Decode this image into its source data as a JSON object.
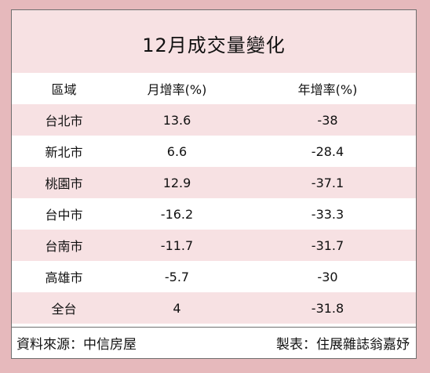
{
  "table": {
    "title": "12月成交量變化",
    "headers": [
      "區域",
      "月增率(%)",
      "年增率(%)"
    ],
    "rows": [
      [
        "台北市",
        "13.6",
        "-38"
      ],
      [
        "新北市",
        "6.6",
        "-28.4"
      ],
      [
        "桃園市",
        "12.9",
        "-37.1"
      ],
      [
        "台中市",
        "-16.2",
        "-33.3"
      ],
      [
        "台南市",
        "-11.7",
        "-31.7"
      ],
      [
        "高雄市",
        "-5.7",
        "-30"
      ],
      [
        "全台",
        "4",
        "-31.8"
      ]
    ]
  },
  "footer": {
    "source": "資料來源：中信房屋",
    "credit": "製表：住展雜誌翁嘉妤"
  },
  "colors": {
    "background": "#e6b9bc",
    "band": "#f7e1e3",
    "border": "#6f6f6f"
  }
}
